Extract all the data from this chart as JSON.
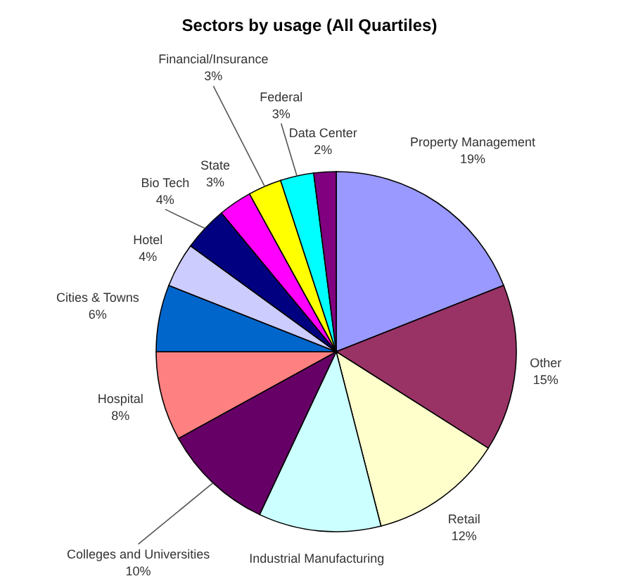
{
  "chart_data": {
    "type": "pie",
    "title": "Sectors by usage (All Quartiles)",
    "categories": [
      "Property Management",
      "Other",
      "Retail",
      "Industrial Manufacturing",
      "Colleges and Universities",
      "Hospital",
      "Cities & Towns",
      "Hotel",
      "Bio Tech",
      "State",
      "Financial/Insurance",
      "Federal",
      "Data Center"
    ],
    "values": [
      19,
      15,
      12,
      11,
      10,
      8,
      6,
      4,
      4,
      3,
      3,
      3,
      2
    ],
    "value_labels": [
      "19%",
      "15%",
      "12%",
      null,
      "10%",
      "8%",
      "6%",
      "4%",
      "4%",
      "3%",
      "3%",
      "3%",
      "2%"
    ],
    "colors": [
      "#9999ff",
      "#993366",
      "#ffffcc",
      "#ccffff",
      "#660066",
      "#ff8080",
      "#0066cc",
      "#ccccff",
      "#000080",
      "#ff00ff",
      "#ffff00",
      "#00ffff",
      "#800080"
    ]
  }
}
